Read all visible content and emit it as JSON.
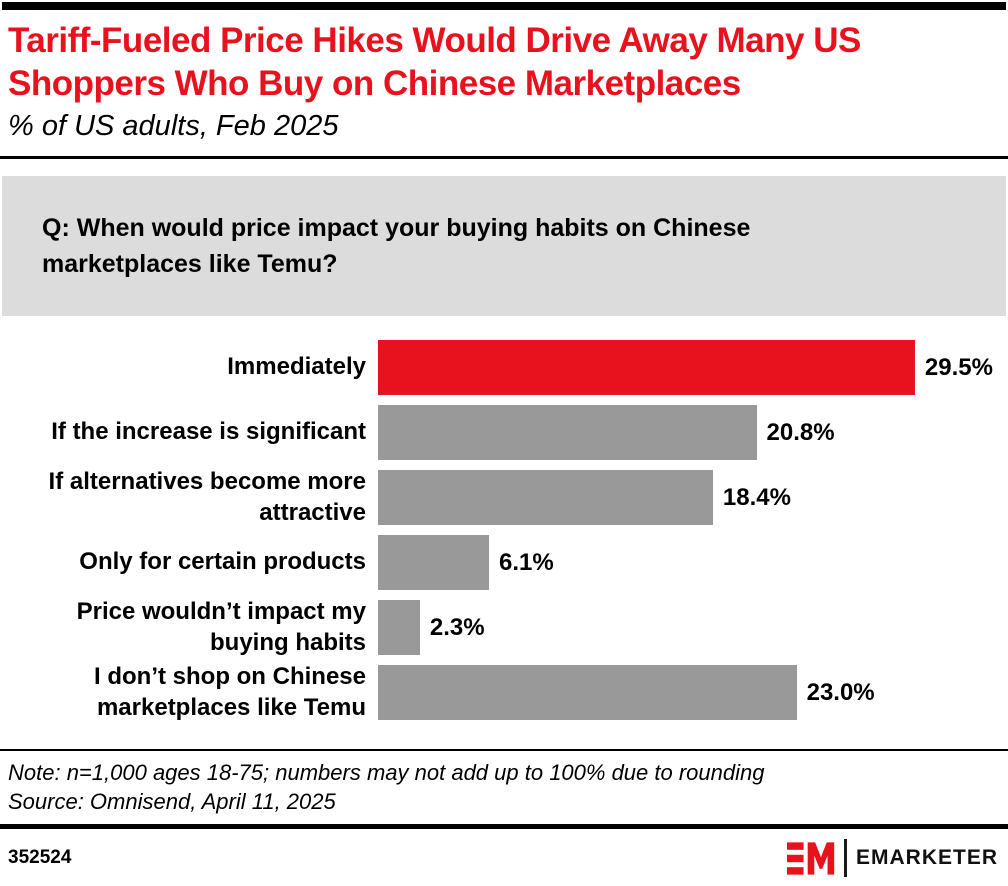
{
  "header": {
    "title": "Tariff-Fueled Price Hikes Would Drive Away Many US\nShoppers Who Buy on Chinese Marketplaces",
    "subtitle": "% of US adults, Feb 2025",
    "title_color": "#E8121E"
  },
  "question": {
    "text": "Q: When would price impact your buying habits on Chinese\nmarketplaces like Temu?",
    "background_color": "#DCDCDC"
  },
  "chart_data": {
    "type": "bar",
    "orientation": "horizontal",
    "title": "Tariff-Fueled Price Hikes Would Drive Away Many US Shoppers Who Buy on Chinese Marketplaces",
    "subtitle": "% of US adults, Feb 2025",
    "unit": "%",
    "xlim": [
      0,
      29.5
    ],
    "grid": false,
    "legend": false,
    "categories": [
      "Immediately",
      "If the increase is significant",
      "If alternatives become more attractive",
      "Only for certain products",
      "Price wouldn’t impact my buying habits",
      "I don’t shop on Chinese marketplaces like Temu"
    ],
    "display_labels": [
      "Immediately",
      "If the increase is significant",
      "If alternatives become more\nattractive",
      "Only for certain products",
      "Price wouldn’t impact my\nbuying habits",
      "I don’t shop on Chinese\nmarketplaces like Temu"
    ],
    "values": [
      29.5,
      20.8,
      18.4,
      6.1,
      2.3,
      23.0
    ],
    "value_labels": [
      "29.5%",
      "20.8%",
      "18.4%",
      "6.1%",
      "2.3%",
      "23.0%"
    ],
    "bar_colors": [
      "#E8121E",
      "#999999",
      "#999999",
      "#999999",
      "#999999",
      "#999999"
    ],
    "highlight_color": "#E8121E",
    "default_color": "#999999"
  },
  "footnote": {
    "note": "Note: n=1,000 ages 18-75; numbers may not add up to 100% due to rounding",
    "source": "Source: Omnisend, April 11, 2025"
  },
  "footer": {
    "chart_id": "352524",
    "brand_name": "EMARKETER",
    "logo_color": "#E8121E"
  }
}
